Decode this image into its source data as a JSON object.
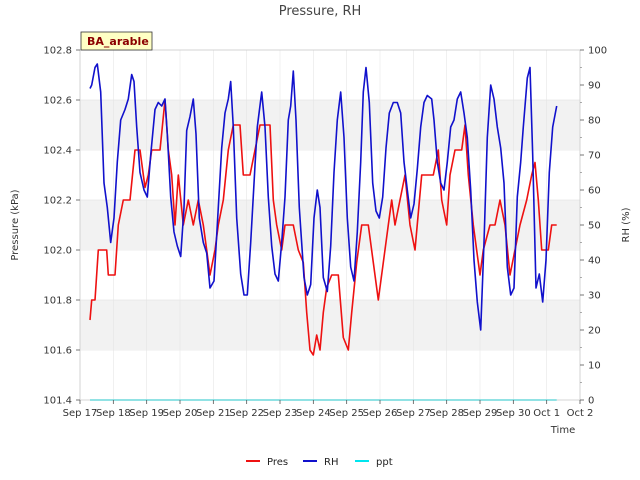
{
  "chart_data": {
    "type": "line",
    "title": "Pressure, RH",
    "badge": "BA_arable",
    "xlabel": "Time",
    "ylabel_left": "Pressure (kPa)",
    "ylabel_right": "RH (%)",
    "x_range": [
      0,
      15
    ],
    "x_ticks": [
      {
        "t": 0,
        "label": "Sep 17"
      },
      {
        "t": 1,
        "label": "Sep 18"
      },
      {
        "t": 2,
        "label": "Sep 19"
      },
      {
        "t": 3,
        "label": "Sep 20"
      },
      {
        "t": 4,
        "label": "Sep 21"
      },
      {
        "t": 5,
        "label": "Sep 22"
      },
      {
        "t": 6,
        "label": "Sep 23"
      },
      {
        "t": 7,
        "label": "Sep 24"
      },
      {
        "t": 8,
        "label": "Sep 25"
      },
      {
        "t": 9,
        "label": "Sep 26"
      },
      {
        "t": 10,
        "label": "Sep 27"
      },
      {
        "t": 11,
        "label": "Sep 28"
      },
      {
        "t": 12,
        "label": "Sep 29"
      },
      {
        "t": 13,
        "label": "Sep 30"
      },
      {
        "t": 14,
        "label": "Oct 1"
      },
      {
        "t": 15,
        "label": "Oct 2"
      }
    ],
    "ylim_left": [
      101.4,
      102.8
    ],
    "left_ticks": [
      "101.4",
      "101.6",
      "101.8",
      "102.0",
      "102.2",
      "102.4",
      "102.6",
      "102.8"
    ],
    "ylim_right": [
      0,
      100
    ],
    "right_ticks": [
      "0",
      "10",
      "20",
      "30",
      "40",
      "50",
      "60",
      "70",
      "80",
      "90",
      "100"
    ],
    "series": [
      {
        "name": "Pres",
        "axis": "left",
        "color": "#ee1111",
        "points": [
          [
            0.3,
            101.72
          ],
          [
            0.35,
            101.8
          ],
          [
            0.45,
            101.8
          ],
          [
            0.55,
            102.0
          ],
          [
            0.8,
            102.0
          ],
          [
            0.85,
            101.9
          ],
          [
            1.05,
            101.9
          ],
          [
            1.15,
            102.1
          ],
          [
            1.3,
            102.2
          ],
          [
            1.5,
            102.2
          ],
          [
            1.65,
            102.4
          ],
          [
            1.8,
            102.4
          ],
          [
            1.95,
            102.25
          ],
          [
            2.05,
            102.3
          ],
          [
            2.15,
            102.4
          ],
          [
            2.4,
            102.4
          ],
          [
            2.55,
            102.6
          ],
          [
            2.65,
            102.4
          ],
          [
            2.75,
            102.3
          ],
          [
            2.85,
            102.1
          ],
          [
            2.95,
            102.3
          ],
          [
            3.1,
            102.1
          ],
          [
            3.25,
            102.2
          ],
          [
            3.4,
            102.1
          ],
          [
            3.55,
            102.2
          ],
          [
            3.7,
            102.1
          ],
          [
            3.8,
            102.0
          ],
          [
            3.9,
            101.9
          ],
          [
            4.05,
            102.0
          ],
          [
            4.15,
            102.1
          ],
          [
            4.3,
            102.2
          ],
          [
            4.45,
            102.4
          ],
          [
            4.6,
            102.5
          ],
          [
            4.8,
            102.5
          ],
          [
            4.9,
            102.3
          ],
          [
            5.1,
            102.3
          ],
          [
            5.25,
            102.4
          ],
          [
            5.4,
            102.5
          ],
          [
            5.7,
            102.5
          ],
          [
            5.8,
            102.2
          ],
          [
            5.9,
            102.1
          ],
          [
            6.05,
            102.0
          ],
          [
            6.15,
            102.1
          ],
          [
            6.4,
            102.1
          ],
          [
            6.55,
            102.0
          ],
          [
            6.7,
            101.95
          ],
          [
            6.8,
            101.75
          ],
          [
            6.9,
            101.6
          ],
          [
            7.0,
            101.58
          ],
          [
            7.1,
            101.66
          ],
          [
            7.2,
            101.6
          ],
          [
            7.3,
            101.75
          ],
          [
            7.4,
            101.85
          ],
          [
            7.55,
            101.9
          ],
          [
            7.75,
            101.9
          ],
          [
            7.9,
            101.65
          ],
          [
            8.05,
            101.6
          ],
          [
            8.15,
            101.75
          ],
          [
            8.3,
            101.95
          ],
          [
            8.45,
            102.1
          ],
          [
            8.65,
            102.1
          ],
          [
            8.8,
            101.95
          ],
          [
            8.95,
            101.8
          ],
          [
            9.1,
            101.95
          ],
          [
            9.25,
            102.1
          ],
          [
            9.35,
            102.2
          ],
          [
            9.45,
            102.1
          ],
          [
            9.6,
            102.2
          ],
          [
            9.75,
            102.3
          ],
          [
            9.9,
            102.1
          ],
          [
            10.05,
            102.0
          ],
          [
            10.25,
            102.3
          ],
          [
            10.6,
            102.3
          ],
          [
            10.75,
            102.4
          ],
          [
            10.85,
            102.2
          ],
          [
            11.0,
            102.1
          ],
          [
            11.1,
            102.3
          ],
          [
            11.25,
            102.4
          ],
          [
            11.45,
            102.4
          ],
          [
            11.55,
            102.5
          ],
          [
            11.65,
            102.3
          ],
          [
            11.8,
            102.1
          ],
          [
            12.0,
            101.9
          ],
          [
            12.1,
            102.0
          ],
          [
            12.3,
            102.1
          ],
          [
            12.45,
            102.1
          ],
          [
            12.6,
            102.2
          ],
          [
            12.75,
            102.1
          ],
          [
            12.9,
            101.9
          ],
          [
            13.05,
            102.0
          ],
          [
            13.2,
            102.1
          ],
          [
            13.4,
            102.2
          ],
          [
            13.55,
            102.3
          ],
          [
            13.65,
            102.35
          ],
          [
            13.75,
            102.2
          ],
          [
            13.85,
            102.0
          ],
          [
            14.05,
            102.0
          ],
          [
            14.15,
            102.1
          ],
          [
            14.3,
            102.1
          ]
        ]
      },
      {
        "name": "RH",
        "axis": "right",
        "color": "#1111cc",
        "points": [
          [
            0.3,
            89
          ],
          [
            0.35,
            90
          ],
          [
            0.45,
            95
          ],
          [
            0.52,
            96
          ],
          [
            0.62,
            88
          ],
          [
            0.72,
            62
          ],
          [
            0.82,
            55
          ],
          [
            0.92,
            45
          ],
          [
            1.02,
            52
          ],
          [
            1.12,
            68
          ],
          [
            1.22,
            80
          ],
          [
            1.35,
            83
          ],
          [
            1.45,
            86
          ],
          [
            1.55,
            93
          ],
          [
            1.62,
            91
          ],
          [
            1.7,
            78
          ],
          [
            1.8,
            65
          ],
          [
            1.92,
            60
          ],
          [
            2.02,
            58
          ],
          [
            2.12,
            70
          ],
          [
            2.25,
            83
          ],
          [
            2.35,
            85
          ],
          [
            2.45,
            84
          ],
          [
            2.55,
            86
          ],
          [
            2.62,
            76
          ],
          [
            2.72,
            58
          ],
          [
            2.82,
            48
          ],
          [
            2.92,
            44
          ],
          [
            3.02,
            41
          ],
          [
            3.12,
            55
          ],
          [
            3.2,
            77
          ],
          [
            3.3,
            81
          ],
          [
            3.4,
            86
          ],
          [
            3.48,
            76
          ],
          [
            3.58,
            52
          ],
          [
            3.7,
            45
          ],
          [
            3.8,
            42
          ],
          [
            3.9,
            32
          ],
          [
            4.02,
            34
          ],
          [
            4.12,
            50
          ],
          [
            4.25,
            72
          ],
          [
            4.35,
            82
          ],
          [
            4.45,
            86
          ],
          [
            4.52,
            91
          ],
          [
            4.6,
            78
          ],
          [
            4.7,
            52
          ],
          [
            4.82,
            36
          ],
          [
            4.92,
            30
          ],
          [
            5.02,
            30
          ],
          [
            5.12,
            45
          ],
          [
            5.25,
            67
          ],
          [
            5.32,
            78
          ],
          [
            5.45,
            88
          ],
          [
            5.55,
            78
          ],
          [
            5.65,
            58
          ],
          [
            5.75,
            44
          ],
          [
            5.85,
            36
          ],
          [
            5.95,
            34
          ],
          [
            6.05,
            45
          ],
          [
            6.15,
            58
          ],
          [
            6.25,
            80
          ],
          [
            6.32,
            84
          ],
          [
            6.4,
            94
          ],
          [
            6.48,
            80
          ],
          [
            6.58,
            55
          ],
          [
            6.72,
            35
          ],
          [
            6.82,
            30
          ],
          [
            6.92,
            33
          ],
          [
            7.02,
            52
          ],
          [
            7.12,
            60
          ],
          [
            7.2,
            55
          ],
          [
            7.3,
            35
          ],
          [
            7.42,
            31
          ],
          [
            7.52,
            44
          ],
          [
            7.62,
            65
          ],
          [
            7.72,
            80
          ],
          [
            7.82,
            88
          ],
          [
            7.92,
            75
          ],
          [
            8.02,
            52
          ],
          [
            8.12,
            38
          ],
          [
            8.22,
            34
          ],
          [
            8.32,
            48
          ],
          [
            8.42,
            68
          ],
          [
            8.5,
            88
          ],
          [
            8.58,
            95
          ],
          [
            8.68,
            85
          ],
          [
            8.78,
            62
          ],
          [
            8.88,
            54
          ],
          [
            8.98,
            52
          ],
          [
            9.08,
            58
          ],
          [
            9.18,
            72
          ],
          [
            9.28,
            82
          ],
          [
            9.4,
            85
          ],
          [
            9.52,
            85
          ],
          [
            9.62,
            82
          ],
          [
            9.72,
            68
          ],
          [
            9.82,
            60
          ],
          [
            9.92,
            52
          ],
          [
            10.02,
            56
          ],
          [
            10.12,
            66
          ],
          [
            10.22,
            78
          ],
          [
            10.32,
            85
          ],
          [
            10.42,
            87
          ],
          [
            10.55,
            86
          ],
          [
            10.62,
            80
          ],
          [
            10.72,
            68
          ],
          [
            10.82,
            62
          ],
          [
            10.92,
            60
          ],
          [
            11.02,
            68
          ],
          [
            11.12,
            78
          ],
          [
            11.22,
            80
          ],
          [
            11.32,
            86
          ],
          [
            11.42,
            88
          ],
          [
            11.52,
            82
          ],
          [
            11.62,
            75
          ],
          [
            11.72,
            60
          ],
          [
            11.82,
            40
          ],
          [
            11.92,
            28
          ],
          [
            12.02,
            20
          ],
          [
            12.12,
            45
          ],
          [
            12.22,
            75
          ],
          [
            12.32,
            90
          ],
          [
            12.42,
            86
          ],
          [
            12.52,
            78
          ],
          [
            12.62,
            72
          ],
          [
            12.72,
            62
          ],
          [
            12.82,
            38
          ],
          [
            12.92,
            30
          ],
          [
            13.02,
            32
          ],
          [
            13.12,
            58
          ],
          [
            13.22,
            68
          ],
          [
            13.3,
            78
          ],
          [
            13.42,
            92
          ],
          [
            13.5,
            95
          ],
          [
            13.58,
            70
          ],
          [
            13.68,
            32
          ],
          [
            13.78,
            36
          ],
          [
            13.88,
            28
          ],
          [
            13.98,
            40
          ],
          [
            14.08,
            65
          ],
          [
            14.18,
            78
          ],
          [
            14.3,
            84
          ]
        ]
      },
      {
        "name": "ppt",
        "axis": "right",
        "color": "#00e5ee",
        "points": [
          [
            0.3,
            0
          ],
          [
            14.3,
            0
          ]
        ]
      }
    ],
    "legend": [
      "Pres",
      "RH",
      "ppt"
    ],
    "legend_position": "bottom-center",
    "grid": "horizontal bands"
  }
}
